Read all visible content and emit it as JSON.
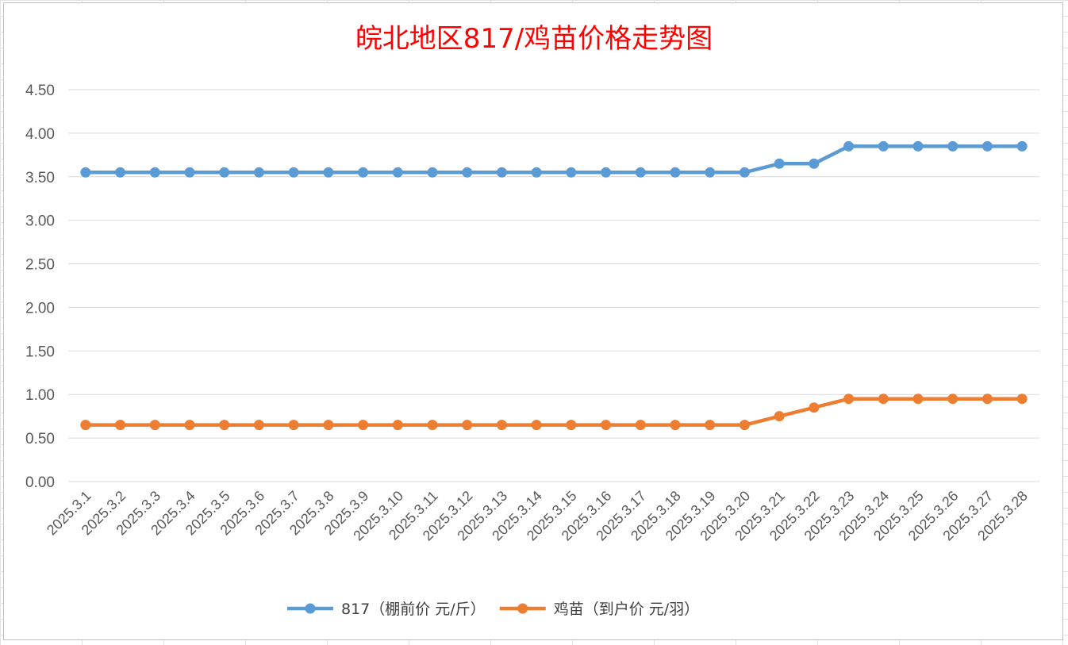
{
  "chart_data": {
    "type": "line",
    "title": "皖北地区817/鸡苗价格走势图",
    "categories": [
      "2025.3.1",
      "2025.3.2",
      "2025.3.3",
      "2025.3.4",
      "2025.3.5",
      "2025.3.6",
      "2025.3.7",
      "2025.3.8",
      "2025.3.9",
      "2025.3.10",
      "2025.3.11",
      "2025.3.12",
      "2025.3.13",
      "2025.3.14",
      "2025.3.15",
      "2025.3.16",
      "2025.3.17",
      "2025.3.18",
      "2025.3.19",
      "2025.3.20",
      "2025.3.21",
      "2025.3.22",
      "2025.3.23",
      "2025.3.24",
      "2025.3.25",
      "2025.3.26",
      "2025.3.27",
      "2025.3.28"
    ],
    "y_ticks": [
      "0.00",
      "0.50",
      "1.00",
      "1.50",
      "2.00",
      "2.50",
      "3.00",
      "3.50",
      "4.00",
      "4.50"
    ],
    "ylim": [
      0,
      4.5
    ],
    "grid": true,
    "legend_position": "bottom",
    "series": [
      {
        "name": "817（棚前价 元/斤）",
        "color": "#5b9bd5",
        "values": [
          3.55,
          3.55,
          3.55,
          3.55,
          3.55,
          3.55,
          3.55,
          3.55,
          3.55,
          3.55,
          3.55,
          3.55,
          3.55,
          3.55,
          3.55,
          3.55,
          3.55,
          3.55,
          3.55,
          3.55,
          3.65,
          3.65,
          3.85,
          3.85,
          3.85,
          3.85,
          3.85,
          3.85
        ]
      },
      {
        "name": "鸡苗（到户价 元/羽）",
        "color": "#ed7d31",
        "values": [
          0.65,
          0.65,
          0.65,
          0.65,
          0.65,
          0.65,
          0.65,
          0.65,
          0.65,
          0.65,
          0.65,
          0.65,
          0.65,
          0.65,
          0.65,
          0.65,
          0.65,
          0.65,
          0.65,
          0.65,
          0.75,
          0.85,
          0.95,
          0.95,
          0.95,
          0.95,
          0.95,
          0.95
        ]
      }
    ]
  }
}
